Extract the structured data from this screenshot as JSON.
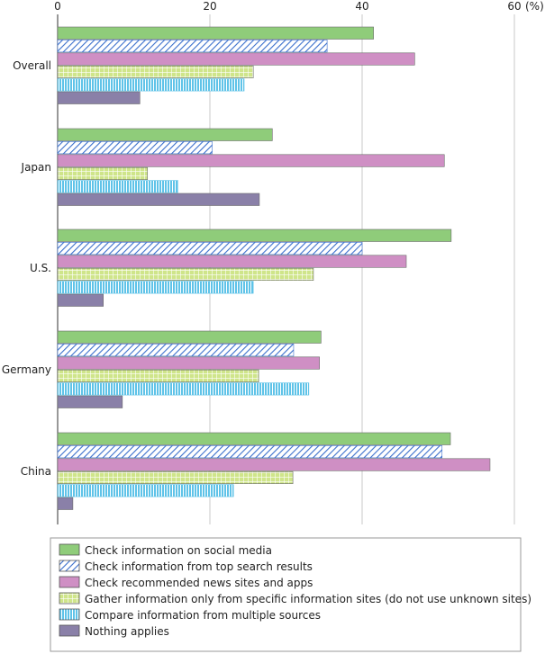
{
  "chart_data": {
    "type": "bar",
    "orientation": "horizontal",
    "categories": [
      "Overall",
      "Japan",
      "U.S.",
      "Germany",
      "China"
    ],
    "series": [
      {
        "name": "Check information on social media",
        "values": [
          41.5,
          28.2,
          51.7,
          34.6,
          51.6
        ],
        "color": "#8fcc7a",
        "pattern": "solid"
      },
      {
        "name": "Check information from top search results",
        "values": [
          35.4,
          20.3,
          40.0,
          31.0,
          50.5
        ],
        "color": "#8db3e8",
        "pattern": "diagonal"
      },
      {
        "name": "Check recommended news sites and apps",
        "values": [
          46.9,
          50.8,
          45.8,
          34.4,
          56.8
        ],
        "color": "#cf8fc4",
        "pattern": "solid"
      },
      {
        "name": "Gather information only from specific information sites (do not use unknown sites)",
        "values": [
          25.7,
          11.8,
          33.6,
          26.4,
          30.9
        ],
        "color": "#cfe58a",
        "pattern": "grid"
      },
      {
        "name": "Compare information from multiple sources",
        "values": [
          24.5,
          15.8,
          25.7,
          33.0,
          23.1
        ],
        "color": "#8fd8ee",
        "pattern": "vertical"
      },
      {
        "name": "Nothing applies",
        "values": [
          10.8,
          26.5,
          6.0,
          8.5,
          2.0
        ],
        "color": "#8a80a8",
        "pattern": "solid"
      }
    ],
    "xlim": [
      0,
      60
    ],
    "ticks": [
      "0",
      "20",
      "40",
      "60"
    ],
    "unit_label": "(%)",
    "grid": true,
    "legend_position": "bottom"
  }
}
